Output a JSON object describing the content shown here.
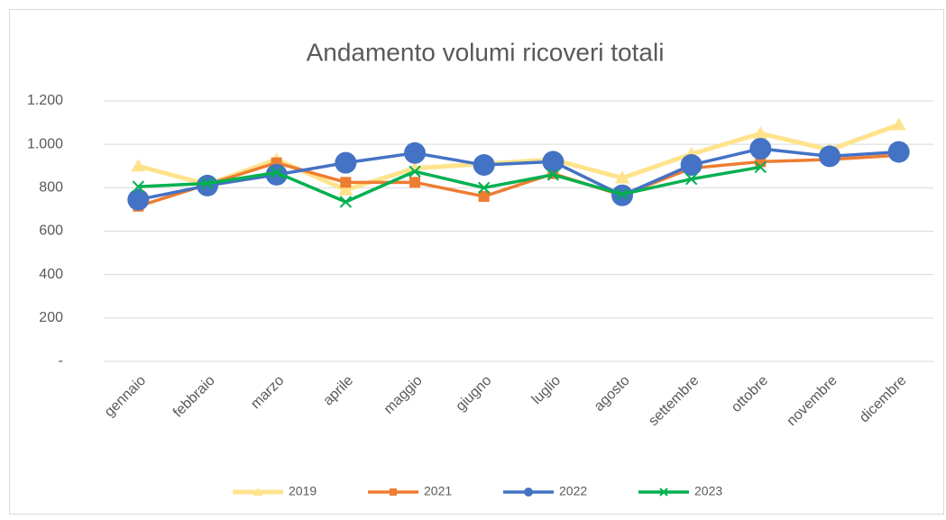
{
  "chart_data": {
    "type": "line",
    "title": "Andamento volumi ricoveri totali",
    "categories": [
      "gennaio",
      "febbraio",
      "marzo",
      "aprile",
      "maggio",
      "giugno",
      "luglio",
      "agosto",
      "settembre",
      "ottobre",
      "novembre",
      "dicembre"
    ],
    "series": [
      {
        "name": "2019",
        "color": "#FFE38C",
        "marker": "triangle",
        "values": [
          900,
          815,
          930,
          790,
          890,
          910,
          930,
          845,
          955,
          1050,
          975,
          1090
        ]
      },
      {
        "name": "2021",
        "color": "#ED7D31",
        "marker": "square",
        "values": [
          715,
          815,
          915,
          825,
          825,
          760,
          865,
          765,
          890,
          920,
          930,
          950
        ]
      },
      {
        "name": "2022",
        "color": "#4472C4",
        "marker": "circle",
        "values": [
          745,
          810,
          860,
          915,
          960,
          905,
          920,
          765,
          905,
          980,
          945,
          965
        ]
      },
      {
        "name": "2023",
        "color": "#00B050",
        "marker": "x",
        "values": [
          805,
          820,
          870,
          735,
          875,
          800,
          860,
          770,
          840,
          895,
          null,
          null
        ]
      }
    ],
    "ylim": [
      0,
      1200
    ],
    "yticks": [
      {
        "value": 0,
        "label": "-"
      },
      200,
      400,
      600,
      800,
      {
        "value": 1000,
        "label": "1.000"
      },
      {
        "value": 1200,
        "label": "1.200"
      }
    ],
    "grid": true,
    "legend": "bottom"
  }
}
